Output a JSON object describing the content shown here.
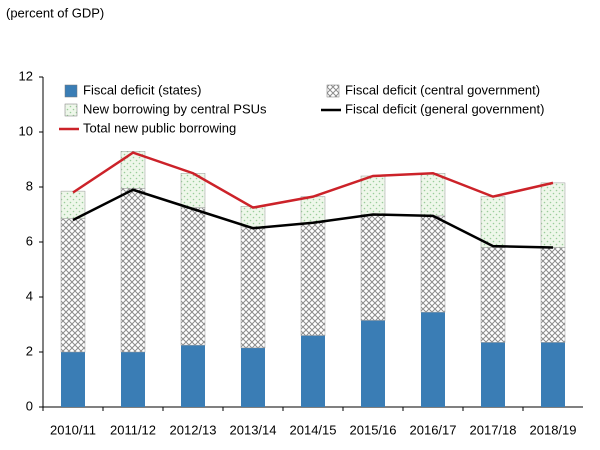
{
  "chart_data": {
    "type": "bar",
    "stacked": true,
    "subtitle": "(percent of GDP)",
    "categories": [
      "2010/11",
      "2011/12",
      "2012/13",
      "2013/14",
      "2014/15",
      "2015/16",
      "2016/17",
      "2017/18",
      "2018/19"
    ],
    "series": [
      {
        "name": "Fiscal deficit (states)",
        "type": "bar",
        "color": "#3a7db5",
        "pattern": "solid",
        "values": [
          2.0,
          2.0,
          2.25,
          2.15,
          2.6,
          3.15,
          3.45,
          2.35,
          2.35
        ]
      },
      {
        "name": "Fiscal deficit (central government)",
        "type": "bar",
        "color": "#8c8c8c",
        "pattern": "crosshatch",
        "values": [
          4.85,
          5.95,
          5.0,
          4.4,
          4.1,
          3.85,
          3.5,
          3.45,
          3.45
        ]
      },
      {
        "name": "New borrowing by central PSUs",
        "type": "bar",
        "color": "#9acd9a",
        "pattern": "dots",
        "values": [
          1.0,
          1.35,
          1.25,
          0.75,
          0.95,
          1.4,
          1.55,
          1.85,
          2.35
        ]
      },
      {
        "name": "Fiscal deficit (general government)",
        "type": "line",
        "color": "#000000",
        "values": [
          6.8,
          7.9,
          7.2,
          6.5,
          6.7,
          7.0,
          6.95,
          5.85,
          5.8
        ]
      },
      {
        "name": "Total new public borrowing",
        "type": "line",
        "color": "#cc2229",
        "values": [
          7.8,
          9.25,
          8.5,
          7.25,
          7.65,
          8.4,
          8.5,
          7.65,
          8.15
        ]
      }
    ],
    "ylim": [
      0,
      12
    ],
    "yticks": [
      0,
      2,
      4,
      6,
      8,
      10,
      12
    ],
    "grid": false
  }
}
